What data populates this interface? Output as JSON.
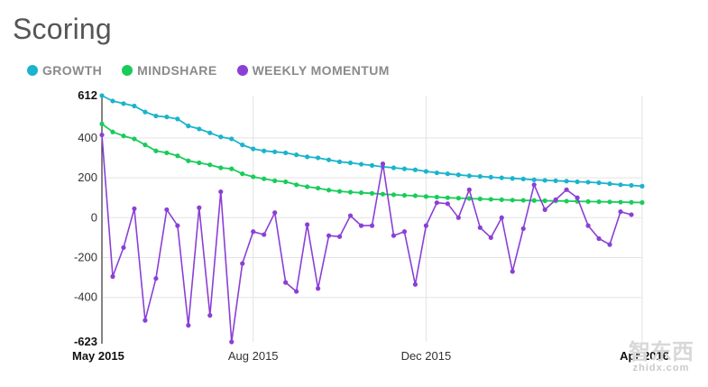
{
  "page": {
    "title": "Scoring"
  },
  "legend": [
    {
      "label": "GROWTH",
      "color": "#1ab4cc"
    },
    {
      "label": "MINDSHARE",
      "color": "#19cc5a"
    },
    {
      "label": "WEEKLY MOMENTUM",
      "color": "#8b3fd6"
    }
  ],
  "watermark": {
    "top": "智东西",
    "bottom": "zhidx.com"
  },
  "chart_data": {
    "type": "line",
    "title": "Scoring",
    "xlabel": "",
    "ylabel": "",
    "x_ticks": [
      "May 2015",
      "Aug 2015",
      "Dec 2015",
      "Apr 2016"
    ],
    "x_tick_weeks": [
      0,
      14,
      30,
      50
    ],
    "y_ticks": [
      612,
      400,
      200,
      0,
      -200,
      -400,
      -623
    ],
    "ylim": [
      -623,
      612
    ],
    "grid": true,
    "legend_position": "top-left",
    "series": [
      {
        "name": "GROWTH",
        "color": "#1ab4cc",
        "values": [
          612,
          585,
          572,
          560,
          530,
          510,
          505,
          495,
          460,
          445,
          425,
          405,
          395,
          365,
          345,
          335,
          330,
          325,
          315,
          305,
          300,
          290,
          280,
          275,
          268,
          262,
          255,
          250,
          245,
          240,
          232,
          225,
          220,
          215,
          210,
          207,
          203,
          200,
          197,
          194,
          190,
          187,
          185,
          183,
          180,
          178,
          175,
          170,
          165,
          162,
          158
        ]
      },
      {
        "name": "MINDSHARE",
        "color": "#19cc5a",
        "values": [
          470,
          430,
          410,
          395,
          365,
          335,
          325,
          310,
          285,
          275,
          265,
          250,
          245,
          220,
          205,
          195,
          185,
          180,
          165,
          155,
          148,
          138,
          132,
          128,
          125,
          122,
          118,
          115,
          112,
          110,
          106,
          103,
          100,
          98,
          96,
          94,
          92,
          90,
          88,
          87,
          86,
          85,
          84,
          83,
          82,
          81,
          80,
          79,
          78,
          77,
          76
        ]
      },
      {
        "name": "WEEKLY MOMENTUM",
        "color": "#8b3fd6",
        "values": [
          415,
          -295,
          -150,
          45,
          -515,
          -305,
          40,
          -40,
          -540,
          50,
          -490,
          130,
          -623,
          -230,
          -70,
          -85,
          25,
          -325,
          -370,
          -35,
          -355,
          -90,
          -95,
          10,
          -40,
          -40,
          270,
          -90,
          -70,
          -335,
          -40,
          75,
          70,
          0,
          140,
          -50,
          -100,
          0,
          -270,
          -55,
          165,
          40,
          90,
          140,
          100,
          -40,
          -105,
          -135,
          30,
          15
        ]
      }
    ]
  }
}
